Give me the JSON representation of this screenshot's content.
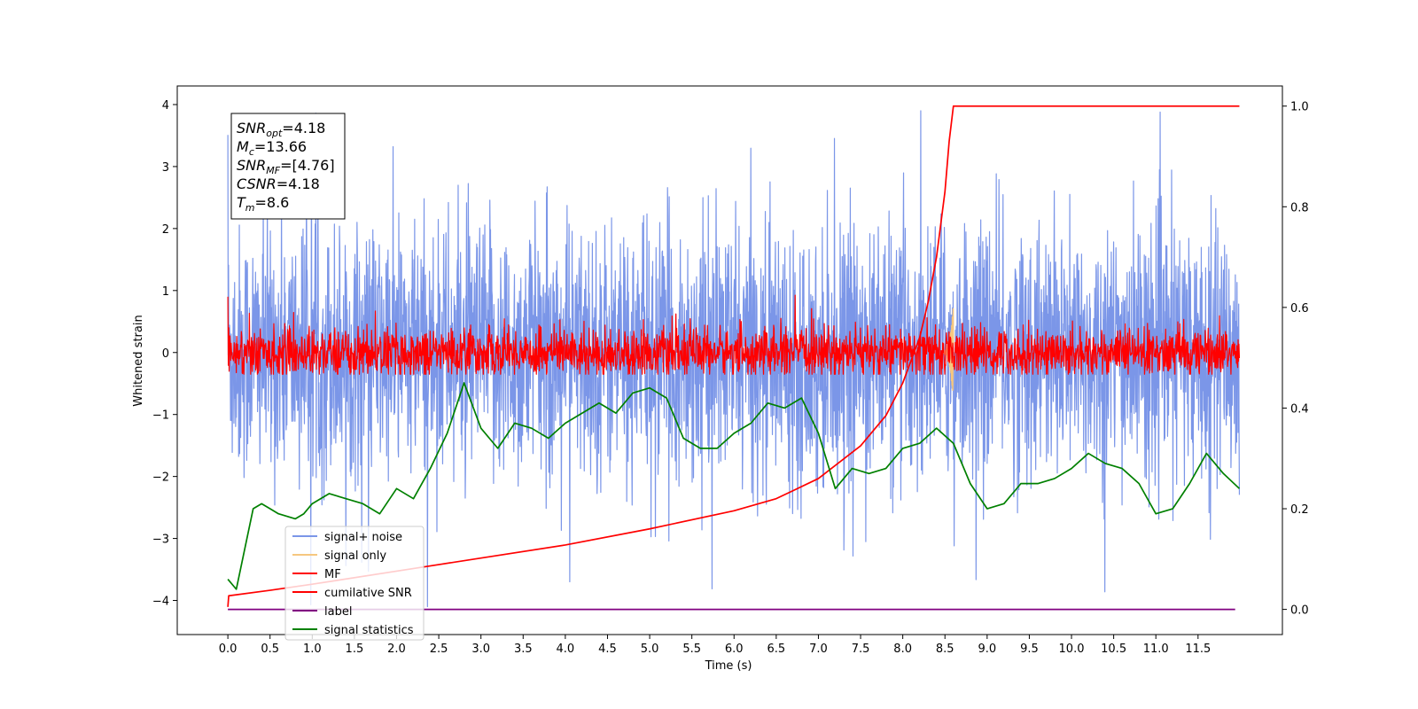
{
  "chart_data": {
    "type": "line",
    "xlabel": "Time (s)",
    "ylabel": "Whitened strain",
    "xlim": [
      -0.6,
      12.5
    ],
    "ylim": [
      -4.55,
      4.3
    ],
    "y2lim": [
      -0.05,
      1.04
    ],
    "x_ticks": [
      0.0,
      0.5,
      1.0,
      1.5,
      2.0,
      2.5,
      3.0,
      3.5,
      4.0,
      4.5,
      5.0,
      5.5,
      6.0,
      6.5,
      7.0,
      7.5,
      8.0,
      8.5,
      9.0,
      9.5,
      10.0,
      10.5,
      11.0,
      11.5
    ],
    "x_tick_labels": [
      "0.0",
      "0.5",
      "1.0",
      "1.5",
      "2.0",
      "2.5",
      "3.0",
      "3.5",
      "4.0",
      "4.5",
      "5.0",
      "5.5",
      "6.0",
      "6.5",
      "7.0",
      "7.5",
      "8.0",
      "8.5",
      "9.0",
      "9.5",
      "10.0",
      "10.5",
      "11.0",
      "11.5"
    ],
    "y_ticks": [
      -4,
      -3,
      -2,
      -1,
      0,
      1,
      2,
      3,
      4
    ],
    "y_tick_labels": [
      "−4",
      "−3",
      "−2",
      "−1",
      "0",
      "1",
      "2",
      "3",
      "4"
    ],
    "y2_ticks": [
      0.0,
      0.2,
      0.4,
      0.6,
      0.8,
      1.0
    ],
    "y2_tick_labels": [
      "0.0",
      "0.2",
      "0.4",
      "0.6",
      "0.8",
      "1.0"
    ],
    "legend_position": "lower-left",
    "annotation": [
      {
        "base": "SNR",
        "sub": "opt",
        "value": "=4.18"
      },
      {
        "base": "M",
        "sub": "c",
        "value": "=13.66"
      },
      {
        "base": "SNR",
        "sub": "MF",
        "value": "=[4.76]"
      },
      {
        "base": "CSNR",
        "sub": "",
        "value": "=4.18"
      },
      {
        "base": "T",
        "sub": "m",
        "value": "=8.6"
      }
    ],
    "series": [
      {
        "name": "signal+ noise",
        "color": "#7b96e8",
        "axis": "left",
        "kind": "noise",
        "x_range": [
          0.0,
          11.99
        ],
        "center": 0.0,
        "typical_amplitude": 1.3,
        "peak_range": [
          -4.1,
          3.9
        ]
      },
      {
        "name": "signal only",
        "color": "#f6c77f",
        "axis": "left",
        "kind": "chirp",
        "x_range": [
          8.45,
          8.6
        ],
        "peak_amplitude": 0.75,
        "x_peak": 8.58
      },
      {
        "name": "MF",
        "color": "#ff0000",
        "axis": "left",
        "kind": "noise",
        "x_range": [
          0.0,
          11.99
        ],
        "center": 0.0,
        "typical_amplitude": 0.25,
        "peak_range": [
          -0.35,
          1.0
        ]
      },
      {
        "name": "cumilative SNR",
        "color": "#ff0000",
        "axis": "right",
        "x": [
          0.0,
          0.01,
          0.5,
          1.0,
          2.0,
          3.0,
          4.0,
          5.0,
          6.0,
          6.5,
          7.0,
          7.5,
          7.8,
          8.0,
          8.2,
          8.3,
          8.4,
          8.5,
          8.55,
          8.6,
          11.99
        ],
        "y": [
          0.005,
          0.027,
          0.038,
          0.05,
          0.076,
          0.102,
          0.128,
          0.16,
          0.196,
          0.22,
          0.26,
          0.325,
          0.385,
          0.45,
          0.54,
          0.61,
          0.7,
          0.83,
          0.93,
          1.0,
          1.0
        ]
      },
      {
        "name": "label",
        "color": "#800080",
        "axis": "right",
        "x": [
          0.0,
          11.94
        ],
        "y": [
          0.0,
          0.0
        ]
      },
      {
        "name": "signal statistics",
        "color": "#008000",
        "axis": "right",
        "x": [
          0.0,
          0.1,
          0.2,
          0.3,
          0.4,
          0.5,
          0.6,
          0.7,
          0.8,
          0.9,
          1.0,
          1.2,
          1.4,
          1.6,
          1.8,
          2.0,
          2.2,
          2.4,
          2.6,
          2.8,
          3.0,
          3.2,
          3.4,
          3.6,
          3.8,
          4.0,
          4.2,
          4.4,
          4.6,
          4.8,
          5.0,
          5.2,
          5.4,
          5.6,
          5.8,
          6.0,
          6.2,
          6.4,
          6.6,
          6.8,
          7.0,
          7.2,
          7.4,
          7.6,
          7.8,
          8.0,
          8.2,
          8.4,
          8.6,
          8.8,
          9.0,
          9.2,
          9.4,
          9.6,
          9.8,
          10.0,
          10.2,
          10.4,
          10.6,
          10.8,
          11.0,
          11.2,
          11.4,
          11.6,
          11.8,
          11.99
        ],
        "y": [
          0.06,
          0.04,
          0.12,
          0.2,
          0.21,
          0.2,
          0.19,
          0.185,
          0.18,
          0.19,
          0.21,
          0.23,
          0.22,
          0.21,
          0.19,
          0.24,
          0.22,
          0.28,
          0.35,
          0.45,
          0.36,
          0.32,
          0.37,
          0.36,
          0.34,
          0.37,
          0.39,
          0.41,
          0.39,
          0.43,
          0.44,
          0.42,
          0.34,
          0.32,
          0.32,
          0.35,
          0.37,
          0.41,
          0.4,
          0.42,
          0.35,
          0.24,
          0.28,
          0.27,
          0.28,
          0.32,
          0.33,
          0.36,
          0.33,
          0.25,
          0.2,
          0.21,
          0.25,
          0.25,
          0.26,
          0.28,
          0.31,
          0.29,
          0.28,
          0.25,
          0.19,
          0.2,
          0.25,
          0.31,
          0.27,
          0.24
        ]
      }
    ]
  }
}
